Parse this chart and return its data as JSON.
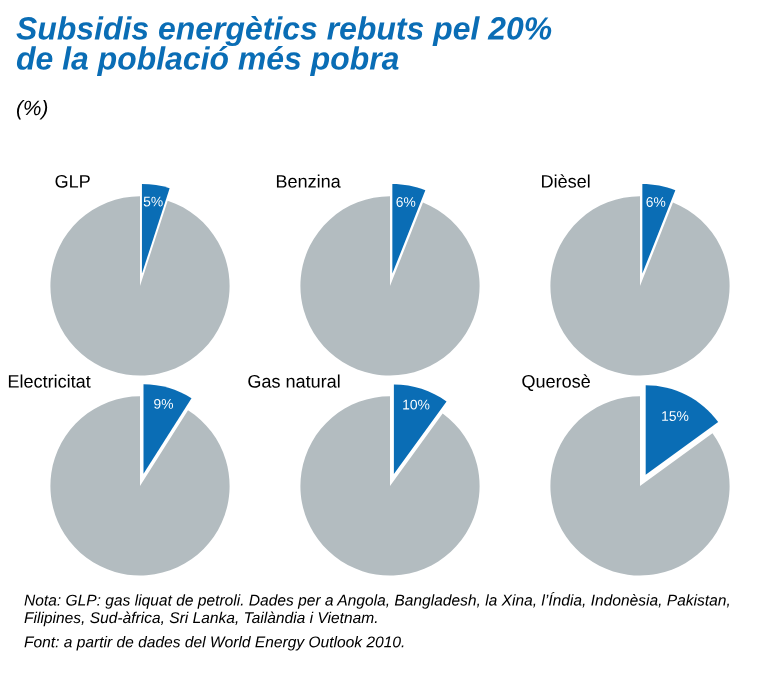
{
  "chart_data": [
    {
      "type": "other",
      "title": "Subsidis energètics rebuts pel 20%\nde la població més pobra",
      "subtitle": "(%)",
      "annotations": [
        "Nota: GLP: gas liquat de petroli. Dades per a Angola, Bangladesh, la Xina, l’Índia, Indonèsia, Pakistan, Filipines, Sud-àfrica, Sri Lanka, Tailàndia i Vietnam.",
        "Font: a partir de dades del World Energy Outlook 2010."
      ]
    },
    {
      "type": "pie",
      "title": "GLP",
      "categories": [
        null,
        null
      ],
      "values": [
        5,
        95
      ],
      "colors": [
        "#0a6db5",
        "#b3bcc0"
      ],
      "value_labels": [
        "5%",
        null
      ]
    },
    {
      "type": "pie",
      "title": "Benzina",
      "categories": [
        null,
        null
      ],
      "values": [
        6,
        94
      ],
      "colors": [
        "#0a6db5",
        "#b3bcc0"
      ],
      "value_labels": [
        "6%",
        null
      ]
    },
    {
      "type": "pie",
      "title": "Dièsel",
      "categories": [
        null,
        null
      ],
      "values": [
        6,
        94
      ],
      "colors": [
        "#0a6db5",
        "#b3bcc0"
      ],
      "value_labels": [
        "6%",
        null
      ]
    },
    {
      "type": "pie",
      "title": "Electricitat",
      "categories": [
        null,
        null
      ],
      "values": [
        9,
        91
      ],
      "colors": [
        "#0a6db5",
        "#b3bcc0"
      ],
      "value_labels": [
        "9%",
        null
      ]
    },
    {
      "type": "pie",
      "title": "Gas natural",
      "categories": [
        null,
        null
      ],
      "values": [
        10,
        90
      ],
      "colors": [
        "#0a6db5",
        "#b3bcc0"
      ],
      "value_labels": [
        "10%",
        null
      ]
    },
    {
      "type": "pie",
      "title": "Querosè",
      "categories": [
        null,
        null
      ],
      "values": [
        15,
        85
      ],
      "colors": [
        "#0a6db5",
        "#b3bcc0"
      ],
      "value_labels": [
        "15%",
        null
      ]
    }
  ]
}
